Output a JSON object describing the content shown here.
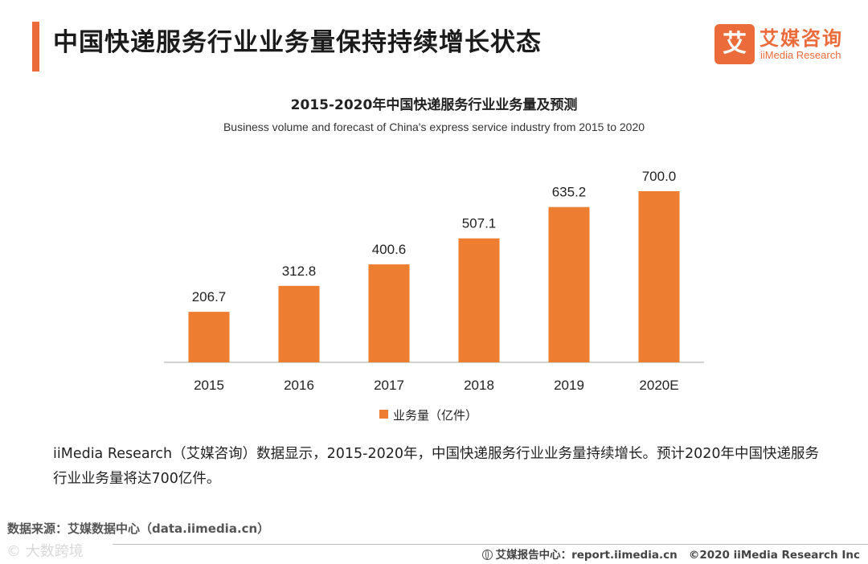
{
  "header": {
    "title": "中国快递服务行业业务量保持持续增长状态",
    "logo_mark": "艾",
    "logo_cn": "艾媒咨询",
    "logo_en": "iiMedia Research"
  },
  "chart_data": {
    "type": "bar",
    "title": "2015-2020年中国快递服务行业业务量及预测",
    "subtitle": "Business volume and forecast of China's express service industry from 2015 to 2020",
    "categories": [
      "2015",
      "2016",
      "2017",
      "2018",
      "2019",
      "2020E"
    ],
    "series": [
      {
        "name": "业务量（亿件）",
        "values": [
          206.7,
          312.8,
          400.6,
          507.1,
          635.2,
          700.0
        ],
        "color": "#ed7d31"
      }
    ],
    "value_labels": [
      "206.7",
      "312.8",
      "400.6",
      "507.1",
      "635.2",
      "700.0"
    ],
    "ylim": [
      0,
      700
    ],
    "xlabel": "",
    "ylabel": "",
    "grid": false,
    "legend_position": "bottom"
  },
  "summary": {
    "text": "iiMedia Research（艾媒咨询）数据显示，2015-2020年，中国快递服务行业业务量持续增长。预计2020年中国快递服务行业业务量将达700亿件。"
  },
  "source": {
    "text": "数据来源：艾媒数据中心（data.iimedia.cn）"
  },
  "watermark": {
    "text": "© 大数跨境"
  },
  "footer": {
    "report": "艾媒报告中心：report.iimedia.cn",
    "copyright": "©2020  iiMedia Research  Inc"
  },
  "colors": {
    "accent": "#ec6b3a",
    "bar": "#ed7d31"
  }
}
